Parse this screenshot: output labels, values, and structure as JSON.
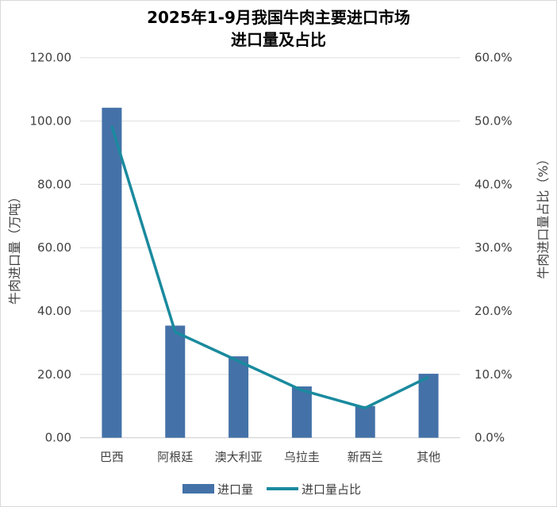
{
  "chart_data": {
    "type": "bar+line",
    "title_lines": [
      "2025年1-9月我国牛肉主要进口市场",
      "进口量及占比"
    ],
    "categories": [
      "巴西",
      "阿根廷",
      "澳大利亚",
      "乌拉圭",
      "新西兰",
      "其他"
    ],
    "series": [
      {
        "name": "进口量",
        "type": "bar",
        "axis": "left",
        "color": "#4472a8",
        "values": [
          104.2,
          35.4,
          25.7,
          16.2,
          10.0,
          20.2
        ]
      },
      {
        "name": "进口量占比",
        "type": "line",
        "axis": "right",
        "color": "#1a8a9e",
        "values": [
          49.2,
          16.7,
          12.1,
          7.5,
          4.7,
          9.6
        ]
      }
    ],
    "ylabel_left": "牛肉进口量（万吨）",
    "ylabel_right": "牛肉进口量占比（%）",
    "ylim_left": [
      0,
      120
    ],
    "ylim_right": [
      0,
      60
    ],
    "yticks_left": [
      "0.00",
      "20.00",
      "40.00",
      "60.00",
      "80.00",
      "100.00",
      "120.00"
    ],
    "yticks_right": [
      "0.0%",
      "10.0%",
      "20.0%",
      "30.0%",
      "40.0%",
      "50.0%",
      "60.0%"
    ],
    "grid": true,
    "legend": "bottom"
  }
}
